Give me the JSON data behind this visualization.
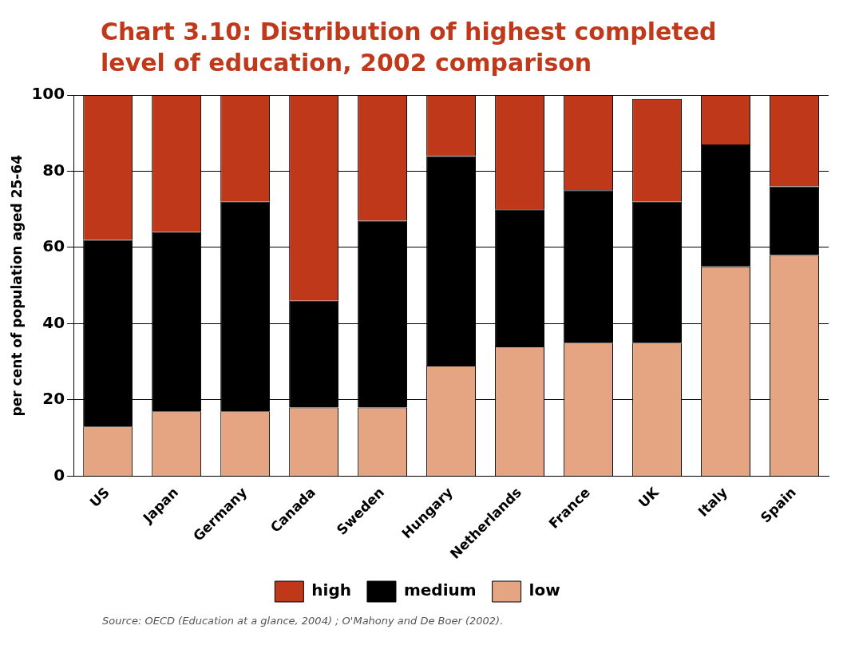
{
  "chart_data": {
    "type": "bar",
    "title": "Chart 3.10: Distribution of highest completed level of education, 2002 comparison",
    "ylabel": "per cent of population aged 25-64",
    "categories": [
      "US",
      "Japan",
      "Germany",
      "Canada",
      "Sweden",
      "Hungary",
      "Netherlands",
      "France",
      "UK",
      "Italy",
      "Spain"
    ],
    "series": [
      {
        "name": "low",
        "color": "#e5a582",
        "values": [
          13,
          17,
          17,
          18,
          18,
          29,
          34,
          35,
          35,
          55,
          58
        ]
      },
      {
        "name": "medium",
        "color": "#000000",
        "values": [
          49,
          47,
          55,
          28,
          49,
          55,
          36,
          40,
          37,
          32,
          18
        ]
      },
      {
        "name": "high",
        "color": "#c0381a",
        "values": [
          38,
          36,
          28,
          54,
          33,
          16,
          30,
          25,
          27,
          13,
          24
        ]
      }
    ],
    "stacked": true,
    "ylim": [
      0,
      100
    ],
    "yticks": [
      0,
      20,
      40,
      60,
      80,
      100
    ],
    "grid": "y",
    "legend": "bottom",
    "annotations": [
      "Source: OECD (Education at a glance, 2004) ; O'Mahony and De Boer (2002)."
    ]
  }
}
